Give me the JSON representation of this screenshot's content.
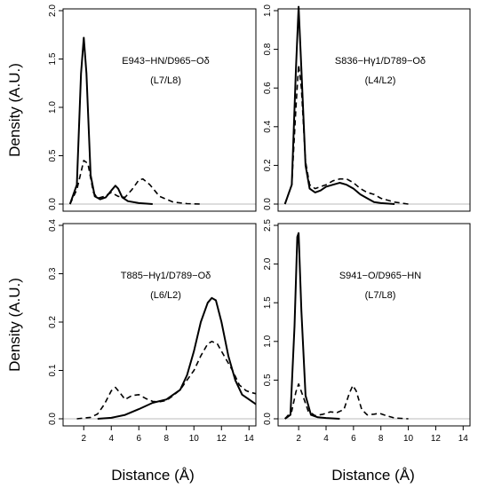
{
  "figure": {
    "ylabel_top": "Density (A.U.)",
    "ylabel_bottom": "Density (A.U.)",
    "xlabel_left": "Distance (Å)",
    "xlabel_right": "Distance (Å)"
  },
  "chart_data": [
    {
      "type": "line",
      "panel": "top-left",
      "title": "",
      "annotation": [
        "E943−HN/D965−Oδ",
        "(L7/L8)"
      ],
      "xlabel": "",
      "ylabel": "Density (A.U.)",
      "xlim": [
        0.5,
        14.5
      ],
      "ylim": [
        0,
        2.0
      ],
      "xticks": [],
      "yticks": [
        0.0,
        0.5,
        1.0,
        1.5,
        2.0
      ],
      "series": [
        {
          "style": "solid",
          "x": [
            1.0,
            1.5,
            1.8,
            2.0,
            2.2,
            2.5,
            2.8,
            3.2,
            3.6,
            4.0,
            4.3,
            4.5,
            4.8,
            5.2,
            6.0,
            7.0
          ],
          "y": [
            0.0,
            0.2,
            1.35,
            1.72,
            1.35,
            0.3,
            0.08,
            0.05,
            0.07,
            0.14,
            0.19,
            0.16,
            0.07,
            0.03,
            0.01,
            0.0
          ]
        },
        {
          "style": "dashed",
          "x": [
            1.0,
            1.5,
            2.0,
            2.3,
            2.7,
            3.0,
            3.5,
            4.0,
            4.5,
            5.0,
            5.5,
            6.0,
            6.3,
            6.8,
            7.5,
            8.5,
            9.5,
            10.5
          ],
          "y": [
            0.0,
            0.15,
            0.45,
            0.42,
            0.12,
            0.06,
            0.08,
            0.12,
            0.08,
            0.07,
            0.15,
            0.25,
            0.26,
            0.2,
            0.08,
            0.02,
            0.005,
            0.0
          ]
        }
      ]
    },
    {
      "type": "line",
      "panel": "top-right",
      "title": "",
      "annotation": [
        "S836−Hγ1/D789−Oδ",
        "(L4/L2)"
      ],
      "xlabel": "",
      "ylabel": "",
      "xlim": [
        0.5,
        14.5
      ],
      "ylim": [
        0,
        1.0
      ],
      "xticks": [],
      "yticks": [
        0.0,
        0.2,
        0.4,
        0.6,
        0.8,
        1.0
      ],
      "series": [
        {
          "style": "solid",
          "x": [
            1.0,
            1.5,
            1.8,
            2.0,
            2.2,
            2.5,
            2.8,
            3.2,
            3.6,
            4.0,
            4.5,
            5.0,
            5.5,
            6.0,
            6.5,
            7.0,
            7.5,
            8.0,
            9.0
          ],
          "y": [
            0.0,
            0.1,
            0.7,
            1.02,
            0.7,
            0.2,
            0.08,
            0.06,
            0.07,
            0.09,
            0.1,
            0.11,
            0.1,
            0.08,
            0.05,
            0.03,
            0.01,
            0.005,
            0.0
          ]
        },
        {
          "style": "dashed",
          "x": [
            1.0,
            1.5,
            1.8,
            2.0,
            2.2,
            2.5,
            2.8,
            3.2,
            3.6,
            4.0,
            4.5,
            5.0,
            5.5,
            6.0,
            6.5,
            7.0,
            7.5,
            8.0,
            9.0,
            10.0
          ],
          "y": [
            0.0,
            0.1,
            0.5,
            0.72,
            0.6,
            0.22,
            0.1,
            0.08,
            0.09,
            0.1,
            0.12,
            0.13,
            0.13,
            0.11,
            0.08,
            0.06,
            0.05,
            0.03,
            0.01,
            0.0
          ]
        }
      ]
    },
    {
      "type": "line",
      "panel": "bottom-left",
      "title": "",
      "annotation": [
        "T885−Hγ1/D789−Oδ",
        "(L6/L2)"
      ],
      "xlabel": "Distance (Å)",
      "ylabel": "Density (A.U.)",
      "xlim": [
        0.5,
        14.5
      ],
      "ylim": [
        0,
        0.4
      ],
      "xticks": [
        2,
        4,
        6,
        8,
        10,
        12,
        14
      ],
      "yticks": [
        0.0,
        0.1,
        0.2,
        0.3,
        0.4
      ],
      "series": [
        {
          "style": "solid",
          "x": [
            3.0,
            4.0,
            5.0,
            6.0,
            7.0,
            8.0,
            9.0,
            9.5,
            10.0,
            10.5,
            11.0,
            11.3,
            11.6,
            12.0,
            12.5,
            13.0,
            13.5,
            14.0,
            14.5
          ],
          "y": [
            0.0,
            0.002,
            0.008,
            0.02,
            0.033,
            0.04,
            0.06,
            0.09,
            0.14,
            0.2,
            0.24,
            0.25,
            0.245,
            0.2,
            0.13,
            0.08,
            0.05,
            0.04,
            0.03
          ]
        },
        {
          "style": "dashed",
          "x": [
            1.5,
            2.5,
            3.0,
            3.5,
            4.0,
            4.3,
            4.6,
            5.0,
            5.5,
            6.0,
            6.5,
            7.0,
            7.5,
            8.0,
            8.5,
            9.0,
            9.5,
            10.0,
            10.5,
            11.0,
            11.3,
            11.7,
            12.2,
            12.8,
            13.3,
            13.8,
            14.2,
            14.5
          ],
          "y": [
            0.0,
            0.003,
            0.01,
            0.03,
            0.058,
            0.065,
            0.055,
            0.04,
            0.048,
            0.05,
            0.042,
            0.036,
            0.035,
            0.038,
            0.048,
            0.06,
            0.08,
            0.1,
            0.13,
            0.155,
            0.16,
            0.155,
            0.13,
            0.1,
            0.07,
            0.058,
            0.054,
            0.052
          ]
        }
      ]
    },
    {
      "type": "line",
      "panel": "bottom-right",
      "title": "",
      "annotation": [
        "S941−O/D965−HN",
        "(L7/L8)"
      ],
      "xlabel": "Distance (Å)",
      "ylabel": "",
      "xlim": [
        0.5,
        14.5
      ],
      "ylim": [
        0,
        2.5
      ],
      "xticks": [
        2,
        4,
        6,
        8,
        10,
        12,
        14
      ],
      "yticks": [
        0.0,
        0.5,
        1.0,
        1.5,
        2.0,
        2.5
      ],
      "series": [
        {
          "style": "solid",
          "x": [
            1.0,
            1.4,
            1.7,
            1.9,
            2.0,
            2.2,
            2.5,
            2.9,
            3.4,
            4.0,
            5.0
          ],
          "y": [
            0.0,
            0.05,
            1.2,
            2.35,
            2.4,
            1.4,
            0.3,
            0.05,
            0.02,
            0.01,
            0.0
          ]
        },
        {
          "style": "dashed",
          "x": [
            1.0,
            1.5,
            1.8,
            2.0,
            2.3,
            2.7,
            3.2,
            3.8,
            4.3,
            4.8,
            5.3,
            5.7,
            5.95,
            6.2,
            6.6,
            7.0,
            7.5,
            7.9,
            8.4,
            9.0,
            10.0
          ],
          "y": [
            0.0,
            0.1,
            0.35,
            0.45,
            0.3,
            0.1,
            0.04,
            0.06,
            0.09,
            0.08,
            0.12,
            0.33,
            0.43,
            0.36,
            0.12,
            0.05,
            0.06,
            0.07,
            0.04,
            0.01,
            0.0
          ]
        }
      ]
    }
  ]
}
